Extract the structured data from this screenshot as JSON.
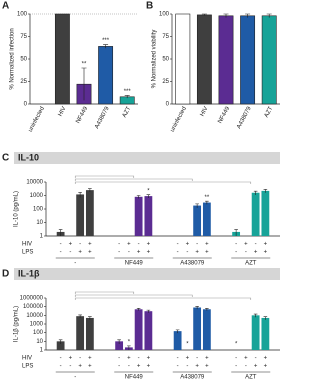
{
  "chart_data": [
    {
      "type": "bar",
      "panel": "A",
      "y_label": "% Normalized infection",
      "categories": [
        "uninfected",
        "HIV",
        "NF449",
        "A438079",
        "AZT"
      ],
      "values": [
        0,
        100,
        22,
        64,
        8
      ],
      "errors": [
        0,
        0,
        18,
        2,
        1.5
      ],
      "colors": [
        "#ffffff",
        "#3f3f3f",
        "#5b2c92",
        "#1f5ba6",
        "#17a398"
      ],
      "annotations": [
        {
          "index": 2,
          "text": "**"
        },
        {
          "index": 3,
          "text": "***"
        },
        {
          "index": 4,
          "text": "***"
        }
      ],
      "reference_line": 100,
      "ylim": [
        0,
        100
      ],
      "yticks": [
        0,
        25,
        50,
        75,
        100
      ]
    },
    {
      "type": "bar",
      "panel": "B",
      "y_label": "% Normalized viability",
      "categories": [
        "uninfected",
        "HIV",
        "NF449",
        "A438079",
        "AZT"
      ],
      "values": [
        100,
        99,
        98,
        98,
        98
      ],
      "errors": [
        0,
        1,
        2,
        2,
        2
      ],
      "colors": [
        "#ffffff",
        "#3f3f3f",
        "#5b2c92",
        "#1f5ba6",
        "#17a398"
      ],
      "annotations": [],
      "ylim": [
        0,
        100
      ],
      "yticks": [
        0,
        25,
        50,
        75,
        100
      ]
    },
    {
      "type": "grouped-log-bar",
      "panel": "C",
      "title": "IL-10",
      "y_label": "IL-10 (pg/mL)",
      "log_scale": true,
      "ylim": [
        1,
        10000
      ],
      "yticks": [
        1,
        10,
        100,
        1000,
        10000
      ],
      "row_labels": [
        "HIV",
        "LPS"
      ],
      "hiv": [
        "-",
        "+",
        "-",
        "+"
      ],
      "lps": [
        "-",
        "-",
        "+",
        "+"
      ],
      "groups": [
        {
          "label": "-",
          "color": "#3f3f3f",
          "values": [
            2,
            null,
            1200,
            2500
          ],
          "errors": [
            1,
            null,
            500,
            700
          ],
          "annotations": []
        },
        {
          "label": "NF449",
          "color": "#5b2c92",
          "values": [
            null,
            null,
            800,
            900
          ],
          "errors": [
            null,
            null,
            200,
            250
          ],
          "annotations": [
            {
              "index": 3,
              "text": "*"
            }
          ]
        },
        {
          "label": "A438079",
          "color": "#1f5ba6",
          "values": [
            null,
            null,
            180,
            300
          ],
          "errors": [
            null,
            null,
            60,
            80
          ],
          "annotations": [
            {
              "index": 3,
              "text": "**"
            }
          ]
        },
        {
          "label": "AZT",
          "color": "#17a398",
          "values": [
            2,
            null,
            1600,
            2200
          ],
          "errors": [
            1,
            null,
            500,
            600
          ],
          "annotations": []
        }
      ]
    },
    {
      "type": "grouped-log-bar",
      "panel": "D",
      "title": "IL-1β",
      "y_label": "IL-1β (pg/mL)",
      "log_scale": true,
      "ylim": [
        1,
        1000000
      ],
      "yticks": [
        1,
        10,
        100,
        1000,
        10000,
        100000,
        1000000
      ],
      "row_labels": [
        "HIV",
        "LPS"
      ],
      "hiv": [
        "-",
        "+",
        "-",
        "+"
      ],
      "lps": [
        "-",
        "-",
        "+",
        "+"
      ],
      "groups": [
        {
          "label": "-",
          "color": "#3f3f3f",
          "values": [
            10,
            null,
            8000,
            5000
          ],
          "errors": [
            5,
            null,
            3000,
            2000
          ],
          "annotations": []
        },
        {
          "label": "NF449",
          "color": "#5b2c92",
          "values": [
            10,
            2,
            50000,
            30000
          ],
          "errors": [
            5,
            1,
            15000,
            10000
          ],
          "annotations": [
            {
              "index": 1,
              "text": "*"
            }
          ]
        },
        {
          "label": "A438079",
          "color": "#1f5ba6",
          "values": [
            150,
            null,
            80000,
            50000
          ],
          "errors": [
            60,
            null,
            30000,
            15000
          ],
          "annotations": [
            {
              "index": 1,
              "text": "*"
            }
          ]
        },
        {
          "label": "AZT",
          "color": "#17a398",
          "values": [
            null,
            null,
            10000,
            5000
          ],
          "errors": [
            null,
            null,
            4000,
            2000
          ],
          "annotations": [
            {
              "index": 0,
              "text": "*"
            }
          ]
        }
      ]
    }
  ]
}
